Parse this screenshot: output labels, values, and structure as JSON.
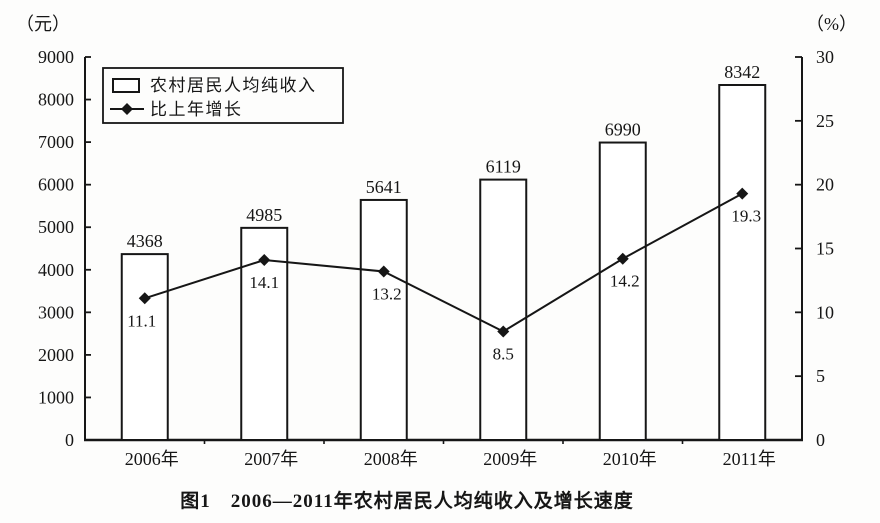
{
  "figure": {
    "left_axis_unit": "（元）",
    "right_axis_unit": "（%）",
    "caption": "图1　2006—2011年农村居民人均纯收入及增长速度"
  },
  "chart_data": {
    "type": "combo-bar-line",
    "title": "图1 2006—2011年农村居民人均纯收入及增长速度",
    "categories": [
      "2006年",
      "2007年",
      "2008年",
      "2009年",
      "2010年",
      "2011年"
    ],
    "series": [
      {
        "name": "农村居民人均纯收入",
        "type": "bar",
        "axis": "left",
        "unit": "元",
        "values": [
          4368,
          4985,
          5641,
          6119,
          6990,
          8342
        ]
      },
      {
        "name": "比上年增长",
        "type": "line",
        "axis": "right",
        "unit": "%",
        "marker": "diamond",
        "values": [
          11.1,
          14.1,
          13.2,
          8.5,
          14.2,
          19.3
        ]
      }
    ],
    "left_axis": {
      "unit": "（元）",
      "min": 0,
      "max": 9000,
      "step": 1000,
      "ticks": [
        0,
        1000,
        2000,
        3000,
        4000,
        5000,
        6000,
        7000,
        8000,
        9000
      ]
    },
    "right_axis": {
      "unit": "（%）",
      "min": 0,
      "max": 30,
      "step": 5,
      "ticks": [
        0,
        5,
        10,
        15,
        20,
        25,
        30
      ]
    },
    "legend": {
      "position": "top-left",
      "entries": [
        "农村居民人均纯收入",
        "比上年增长"
      ]
    },
    "grid": false,
    "bar_fill": "#ffffff",
    "ink_color": "#161616",
    "background": "#fdfdfc"
  }
}
